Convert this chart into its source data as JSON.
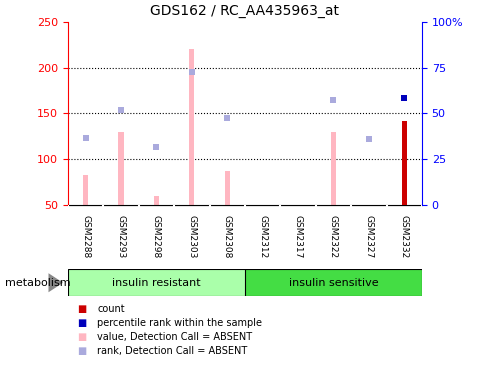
{
  "title": "GDS162 / RC_AA435963_at",
  "samples": [
    "GSM2288",
    "GSM2293",
    "GSM2298",
    "GSM2303",
    "GSM2308",
    "GSM2312",
    "GSM2317",
    "GSM2322",
    "GSM2327",
    "GSM2332"
  ],
  "pink_bars": [
    83,
    130,
    60,
    220,
    87,
    0,
    0,
    130,
    0,
    0
  ],
  "red_bar_index": 9,
  "red_bar_value": 142,
  "blue_dots": [
    123,
    154,
    113,
    195,
    145,
    0,
    0,
    165,
    122,
    0
  ],
  "blue_dot_filled_index": 9,
  "blue_dot_filled_value": 167,
  "ylim_left": [
    50,
    250
  ],
  "ylim_right": [
    0,
    100
  ],
  "yticks_left": [
    50,
    100,
    150,
    200,
    250
  ],
  "yticks_right": [
    0,
    25,
    50,
    75,
    100
  ],
  "yticklabels_right": [
    "0",
    "25",
    "50",
    "75",
    "100%"
  ],
  "pink_bar_color": "#FFB6C1",
  "red_bar_color": "#CC0000",
  "blue_dot_color": "#AAAADD",
  "blue_dot_filled_color": "#0000BB",
  "grid_color": "#000000",
  "bg_color": "#FFFFFF",
  "label_area_color": "#C8C8C8",
  "group1_color": "#AAFFAA",
  "group2_color": "#44DD44",
  "legend_items": [
    {
      "color": "#CC0000",
      "label": "count"
    },
    {
      "color": "#0000BB",
      "label": "percentile rank within the sample"
    },
    {
      "color": "#FFB6C1",
      "label": "value, Detection Call = ABSENT"
    },
    {
      "color": "#AAAADD",
      "label": "rank, Detection Call = ABSENT"
    }
  ],
  "metabolism_label": "metabolism",
  "bar_width": 0.15
}
